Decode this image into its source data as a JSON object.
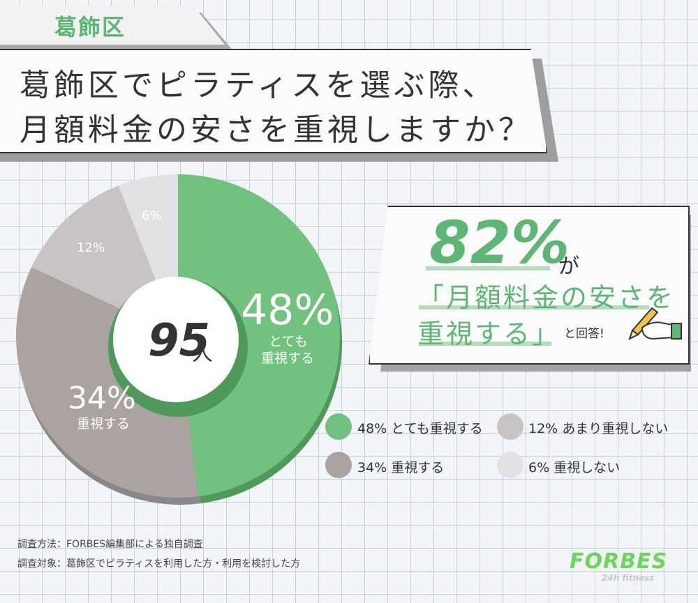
{
  "tag": {
    "label": "葛飾区"
  },
  "title": {
    "line1": "葛飾区でピラティスを選ぶ際、",
    "line2": "月額料金の安さを重視しますか？"
  },
  "callout": {
    "percent": "82%",
    "ga": "が",
    "quote_line1": "「月額料金の安さを",
    "quote_line2": "重視する」",
    "answer": "と回答!"
  },
  "center": {
    "number": "95",
    "unit": "人"
  },
  "chart_data": {
    "type": "pie",
    "categories": [
      "とても重視する",
      "重視する",
      "あまり重視しない",
      "重視しない"
    ],
    "values": [
      48,
      34,
      12,
      6
    ],
    "colors": [
      "#72c27f",
      "#aba3a0",
      "#c8c4c4",
      "#e2e1e3"
    ],
    "shadow_colors": [
      "#4f9a5b",
      "#888888",
      "#9a9595",
      "#b5b3b5"
    ]
  },
  "slice_labels": {
    "s48_pct": "48%",
    "s48_line1": "とても",
    "s48_line2": "重視する",
    "s34_pct": "34%",
    "s34_line1": "重視する",
    "s12_pct": "12%",
    "s6_pct": "6%"
  },
  "legend": [
    {
      "text": "48% とても重視する",
      "color": "#72c27f"
    },
    {
      "text": "12% あまり重視しない",
      "color": "#c8c4c4"
    },
    {
      "text": "34%  重視する",
      "color": "#aba3a0"
    },
    {
      "text": "6%  重視しない",
      "color": "#e2e1e3"
    }
  ],
  "footer": {
    "method": "調査方法：FORBES編集部による独自調査",
    "target": "調査対象：葛飾区でピラティスを利用した方・利用を検討した方"
  },
  "logo": {
    "main": "FORBES",
    "sub": "24h fitness"
  }
}
